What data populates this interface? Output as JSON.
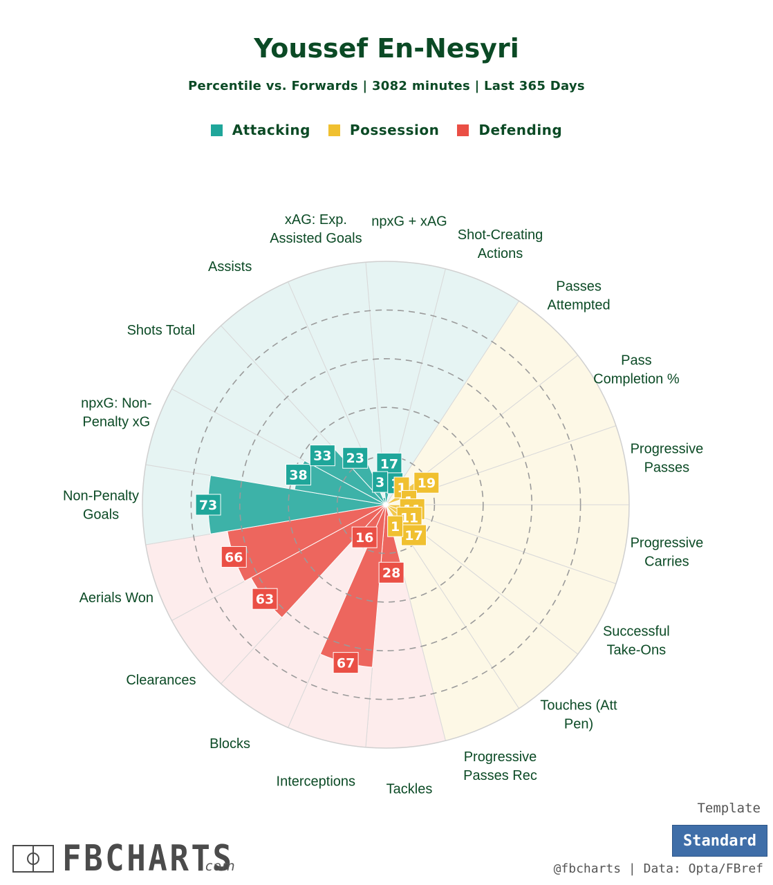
{
  "header": {
    "title": "Youssef En-Nesyri",
    "subtitle": "Percentile vs. Forwards | 3082 minutes | Last 365 Days"
  },
  "legend": [
    {
      "label": "Attacking",
      "color": "#1fa69a"
    },
    {
      "label": "Possession",
      "color": "#f0c030"
    },
    {
      "label": "Defending",
      "color": "#ea4f45"
    }
  ],
  "chart_data": {
    "type": "polar-bar",
    "range": [
      0,
      100
    ],
    "categories": [
      {
        "label": "npxG + xAG",
        "value": 17,
        "group": "Attacking"
      },
      {
        "label": "Shot-Creating Actions",
        "value": 1,
        "group": "Attacking"
      },
      {
        "label": "Passes Attempted",
        "value": 1,
        "group": "Possession"
      },
      {
        "label": "Pass Completion %",
        "value": 19,
        "group": "Possession"
      },
      {
        "label": "Progressive Passes",
        "value": 1,
        "group": "Possession"
      },
      {
        "label": "Progressive Carries",
        "value": 11,
        "group": "Possession"
      },
      {
        "label": "Successful Take-Ons",
        "value": 11,
        "group": "Possession"
      },
      {
        "label": "Touches (Att Pen)",
        "value": 17,
        "group": "Possession"
      },
      {
        "label": "Progressive Passes Rec",
        "value": 1,
        "group": "Possession"
      },
      {
        "label": "Tackles",
        "value": 28,
        "group": "Defending"
      },
      {
        "label": "Interceptions",
        "value": 67,
        "group": "Defending"
      },
      {
        "label": "Blocks",
        "value": 16,
        "group": "Defending"
      },
      {
        "label": "Clearances",
        "value": 63,
        "group": "Defending"
      },
      {
        "label": "Aerials Won",
        "value": 66,
        "group": "Defending"
      },
      {
        "label": "Non-Penalty Goals",
        "value": 73,
        "group": "Attacking"
      },
      {
        "label": "npxG: Non-Penalty xG",
        "value": 38,
        "group": "Attacking"
      },
      {
        "label": "Shots Total",
        "value": 33,
        "group": "Attacking"
      },
      {
        "label": "Assists",
        "value": 23,
        "group": "Attacking"
      },
      {
        "label": "xAG: Exp. Assisted Goals",
        "value": 3,
        "group": "Attacking"
      }
    ],
    "display_labels": [
      "npxG + xAG",
      "Shot-Creating\nActions",
      "Passes\nAttempted",
      "Pass\nCompletion %",
      "Progressive\nPasses",
      "Progressive\nCarries",
      "Successful\nTake-Ons",
      "Touches (Att\nPen)",
      "Progressive\nPasses Rec",
      "Tackles",
      "Interceptions",
      "Blocks",
      "Clearances",
      "Aerials Won",
      "Non-Penalty\nGoals",
      "npxG: Non-\nPenalty xG",
      "Shots Total",
      "Assists",
      "xAG: Exp.\nAssisted Goals"
    ],
    "group_colors": {
      "Attacking": "#1fa69a",
      "Possession": "#f0c030",
      "Defending": "#ea4f45"
    },
    "background_colors": {
      "Attacking": "#e6f4f3",
      "Possession": "#fdf8e6",
      "Defending": "#fdecec"
    }
  },
  "footer": {
    "logo": "FBCHARTS",
    "logo_suffix": ".com",
    "template_label": "Template",
    "template_value": "Standard",
    "credit": "@fbcharts | Data: Opta/FBref"
  }
}
